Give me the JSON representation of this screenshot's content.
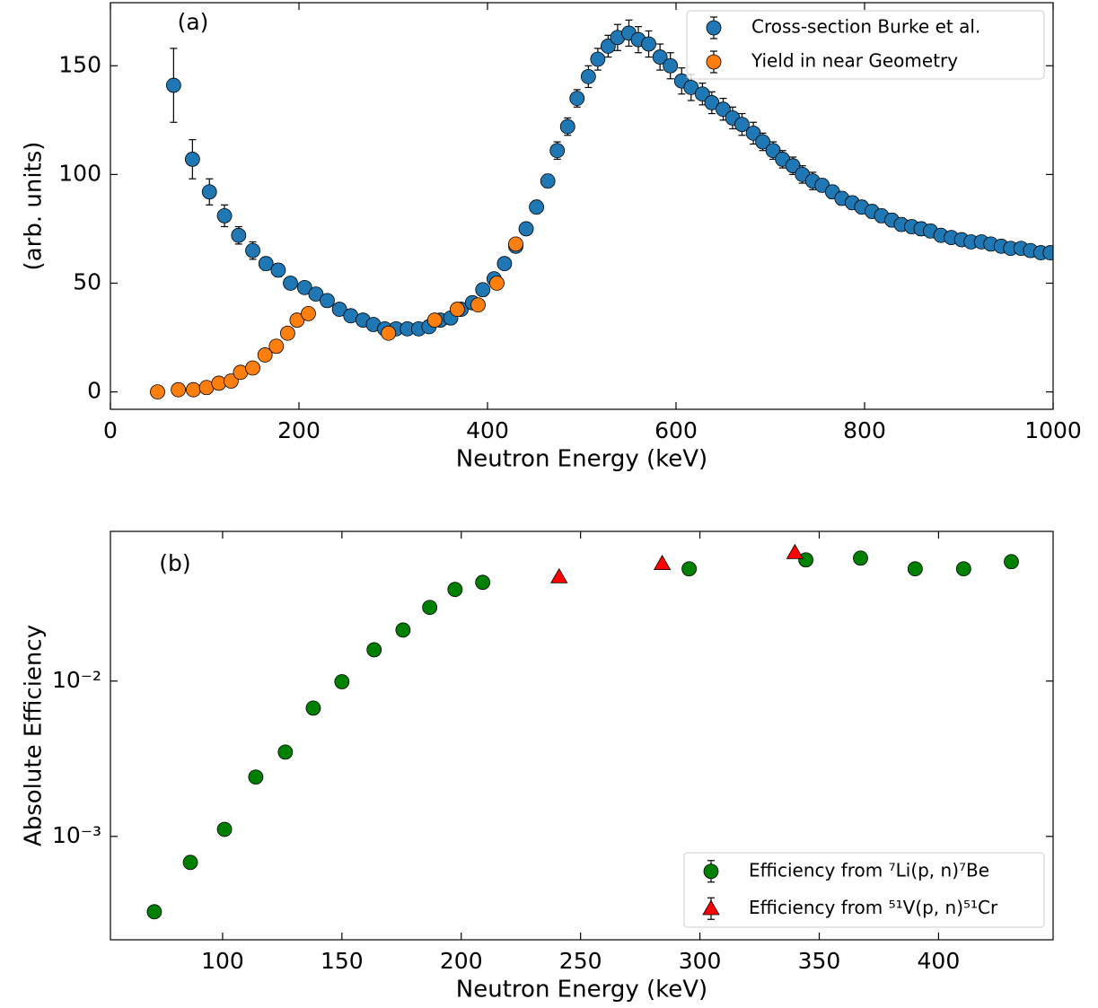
{
  "chart_data": [
    {
      "type": "scatter",
      "annotation": "(a)",
      "xlabel": "Neutron Energy (keV)",
      "ylabel": "(arb. units)",
      "xlim": [
        0,
        1000
      ],
      "ylim": [
        -8,
        179
      ],
      "xticks": [
        0,
        200,
        400,
        600,
        800,
        1000
      ],
      "yticks": [
        0,
        50,
        100,
        150
      ],
      "legend": "upper right",
      "series": [
        {
          "name": "Cross-section Burke et al.",
          "color": "#1f77b4",
          "marker": "o",
          "x": [
            67,
            87,
            105,
            121,
            136,
            151,
            165,
            178,
            191,
            206,
            218,
            230,
            243,
            255,
            268,
            279,
            291,
            303,
            315,
            327,
            338,
            350,
            361,
            372,
            384,
            395,
            407,
            418,
            430,
            441,
            452,
            464,
            474,
            485,
            495,
            507,
            517,
            528,
            538,
            550,
            560,
            571,
            583,
            594,
            606,
            616,
            628,
            638,
            650,
            660,
            670,
            682,
            692,
            703,
            713,
            724,
            734,
            745,
            755,
            766,
            776,
            787,
            797,
            808,
            818,
            829,
            839,
            850,
            860,
            870,
            881,
            892,
            903,
            913,
            924,
            934,
            945,
            955,
            966,
            976,
            987,
            997
          ],
          "values": [
            141,
            107,
            92,
            81,
            72,
            65,
            59,
            56,
            50,
            48,
            45,
            42,
            38,
            35,
            33,
            31,
            29,
            29,
            29,
            29,
            30,
            33,
            34,
            38,
            41,
            47,
            52,
            59,
            67,
            75,
            85,
            97,
            111,
            122,
            135,
            145,
            153,
            159,
            163,
            165,
            162,
            160,
            154,
            150,
            143,
            140,
            137,
            133,
            130,
            126,
            123,
            119,
            115,
            111,
            107,
            104,
            100,
            97,
            95,
            92,
            89,
            87,
            85,
            83,
            81,
            79,
            77,
            76,
            75,
            74,
            72,
            71,
            70,
            69,
            69,
            68,
            67,
            66,
            66,
            65,
            64,
            64
          ],
          "errors": [
            17,
            9,
            6,
            5,
            4,
            4,
            3,
            3,
            2,
            2,
            2,
            2,
            2,
            2,
            2,
            2,
            2,
            2,
            2,
            2,
            2,
            2,
            2,
            2,
            2,
            2,
            2,
            2,
            2,
            2,
            3,
            3,
            4,
            4,
            4,
            5,
            5,
            5,
            6,
            6,
            6,
            6,
            6,
            6,
            6,
            6,
            5,
            5,
            5,
            5,
            5,
            5,
            4,
            4,
            4,
            4,
            4,
            4,
            3,
            3,
            3,
            3,
            3,
            3,
            3,
            3,
            3,
            3,
            3,
            3,
            2,
            2,
            2,
            2,
            2,
            2,
            2,
            2,
            2,
            2,
            2,
            2
          ]
        },
        {
          "name": "Yield in near Geometry",
          "color": "#ff7f0e",
          "marker": "o",
          "x": [
            50,
            72,
            88,
            102,
            115,
            128,
            138,
            151,
            164,
            176,
            188,
            198,
            210,
            295,
            344,
            368,
            390,
            410,
            430
          ],
          "values": [
            0,
            1,
            1,
            2,
            4,
            5,
            9,
            11,
            17,
            21,
            27,
            33,
            36,
            27,
            33,
            38,
            40,
            50,
            68
          ]
        }
      ]
    },
    {
      "type": "scatter",
      "annotation": "(b)",
      "xlabel": "Neutron Energy (keV)",
      "ylabel": "Absolute Efficiency",
      "xlim": [
        53,
        448
      ],
      "ylim": [
        0.000216,
        0.092
      ],
      "yscale": "log",
      "xticks": [
        100,
        150,
        200,
        250,
        300,
        350,
        400
      ],
      "yticks": [
        {
          "value": 0.001,
          "label": "10⁻³"
        },
        {
          "value": 0.01,
          "label": "10⁻²"
        }
      ],
      "legend": "lower right",
      "series": [
        {
          "name": "Efficiency from ⁷Li(p, n)⁷Be",
          "color": "#008000",
          "marker": "o",
          "x": [
            71.4,
            86.5,
            100.8,
            113.9,
            126.3,
            138,
            150,
            163.5,
            175.6,
            186.8,
            197.4,
            209,
            295.5,
            344.4,
            367.3,
            390.2,
            410.5,
            430.5
          ],
          "values": [
            0.000327,
            0.00068,
            0.00111,
            0.00241,
            0.00349,
            0.0067,
            0.0099,
            0.0159,
            0.0213,
            0.0298,
            0.0389,
            0.0432,
            0.0528,
            0.0603,
            0.0619,
            0.0528,
            0.0528,
            0.0587
          ]
        },
        {
          "name": "Efficiency from ⁵¹V(p, n)⁵¹Cr",
          "color": "#ff0000",
          "marker": "^",
          "x": [
            241,
            284.2,
            339.8
          ],
          "values": [
            0.0469,
            0.0571,
            0.0672
          ]
        }
      ]
    }
  ]
}
